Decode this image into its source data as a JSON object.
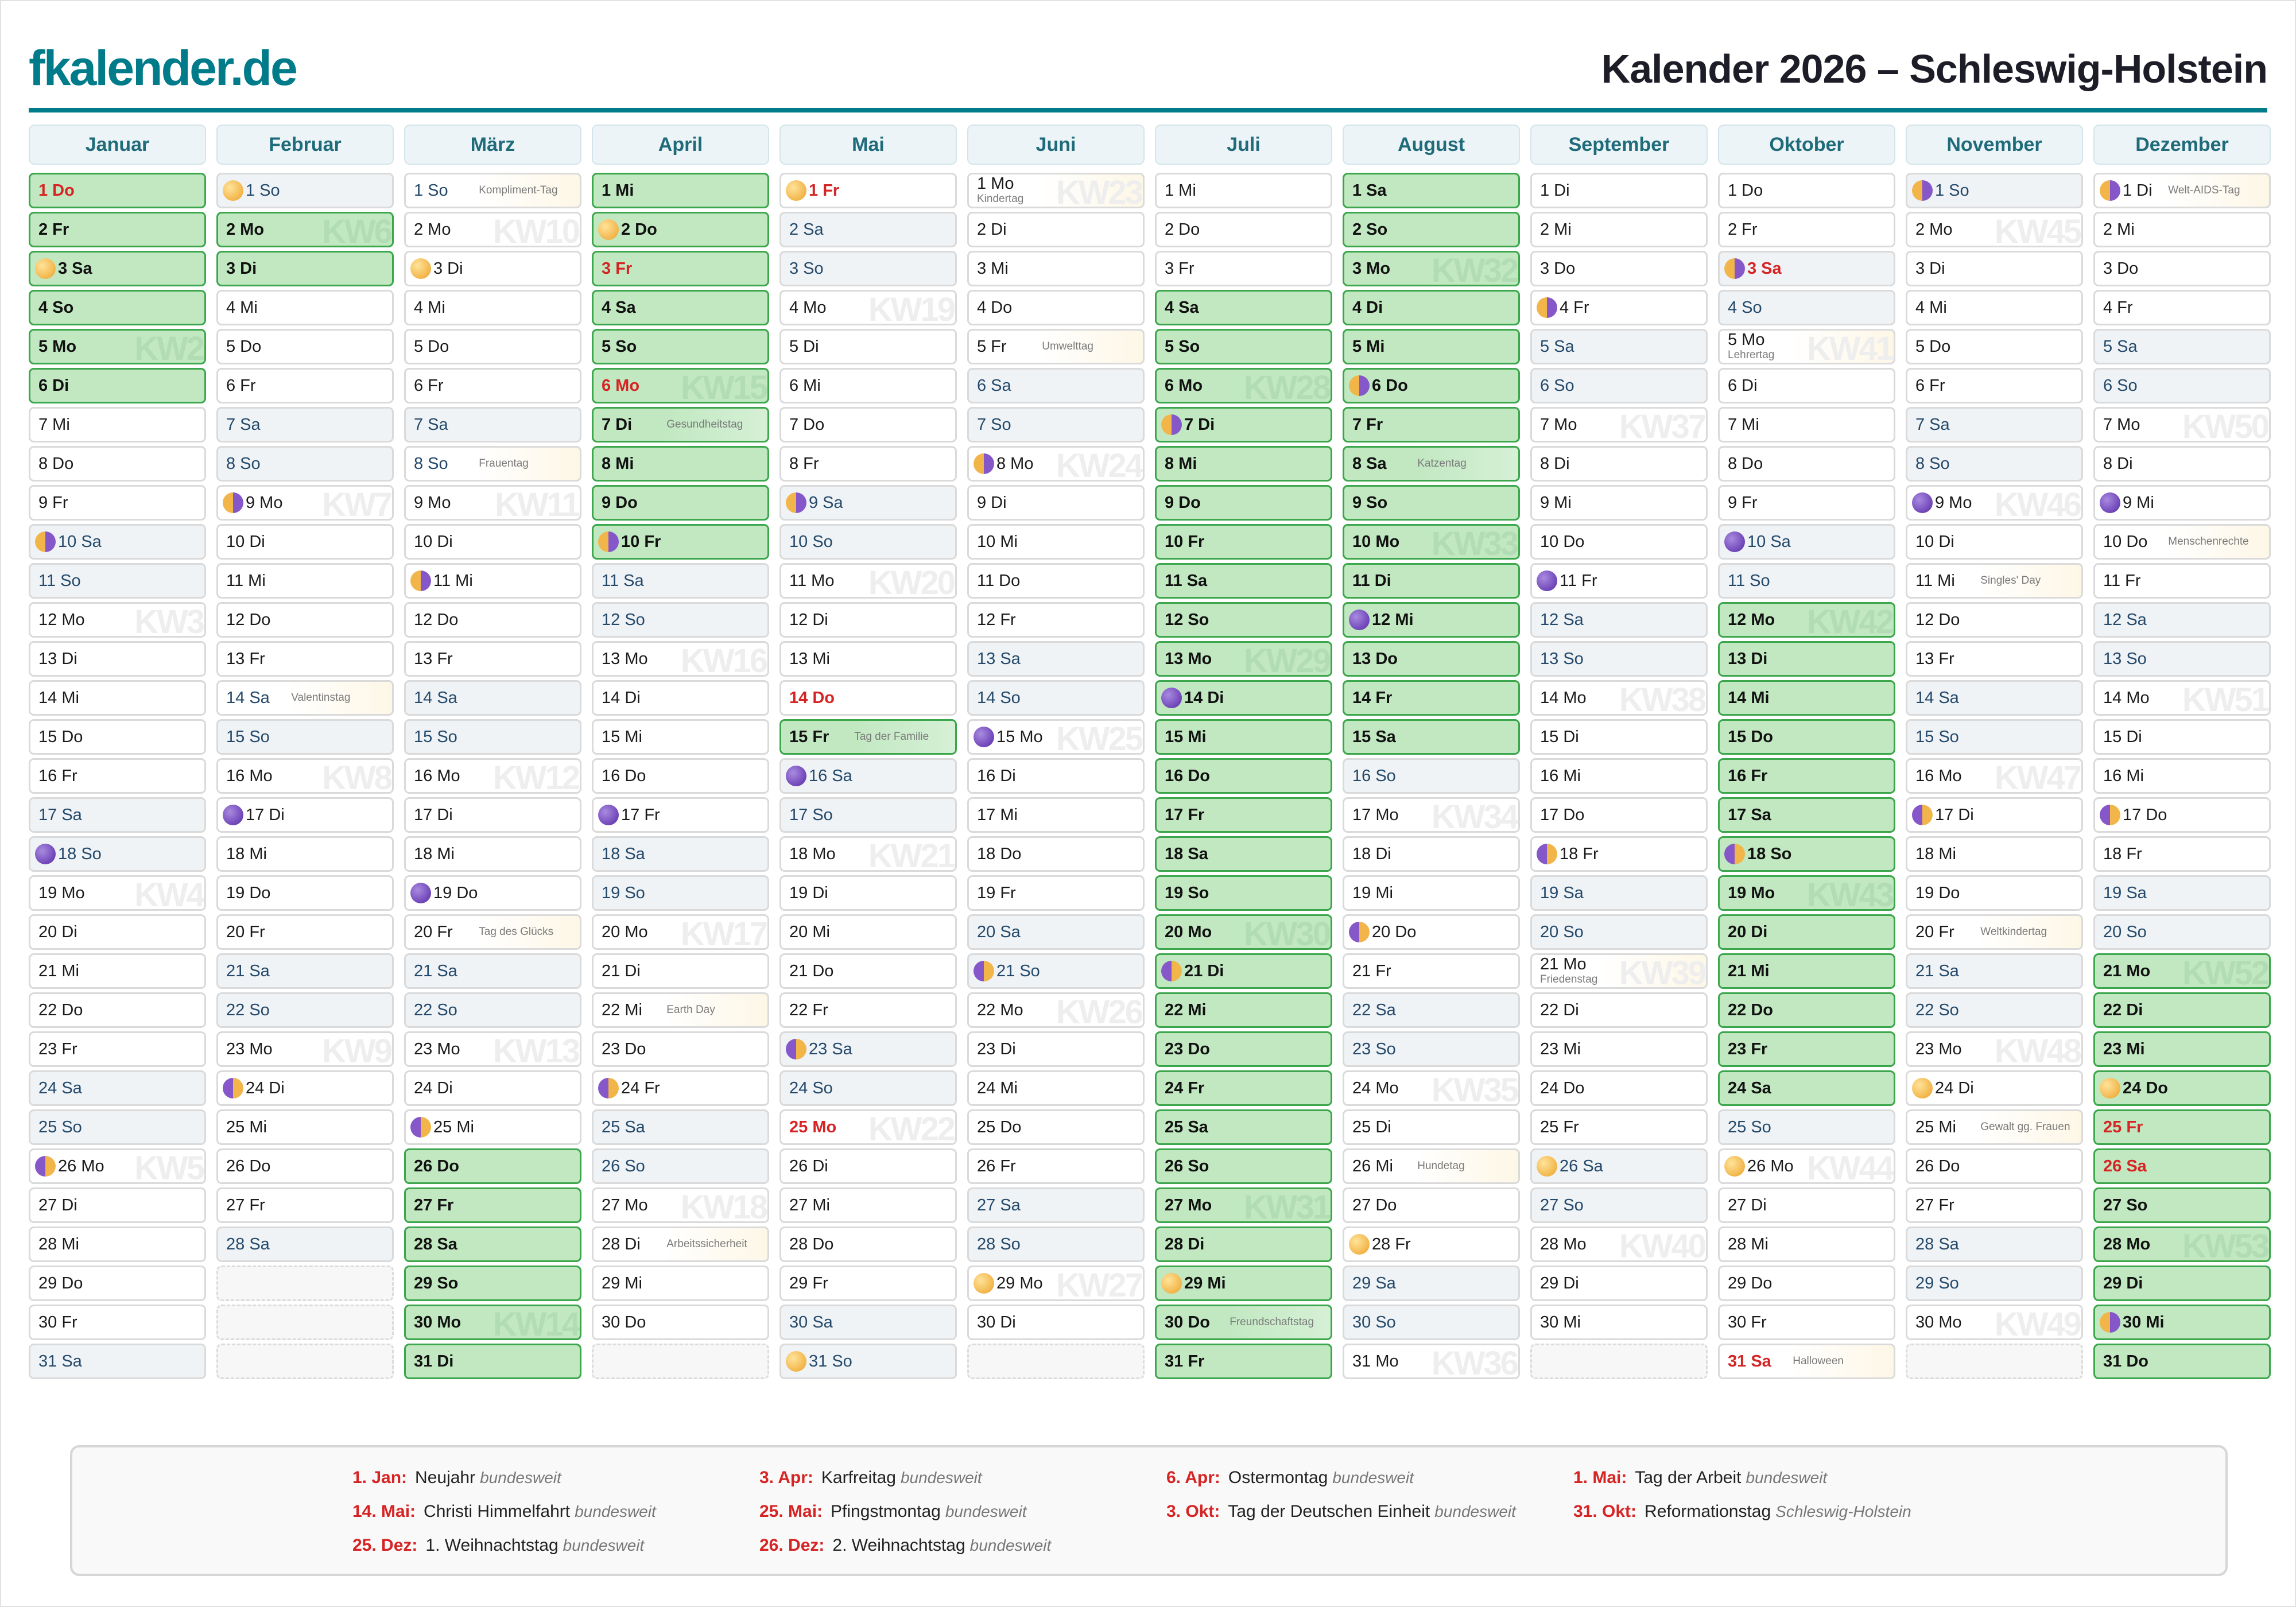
{
  "header": {
    "logo": "fkalender.de",
    "title": "Kalender 2026 – Schleswig-Holstein"
  },
  "months": [
    {
      "name": "Januar",
      "days": [
        "1 Do",
        "2 Fr",
        "3 Sa",
        "4 So",
        "5 Mo",
        "6 Di",
        "7 Mi",
        "8 Do",
        "9 Fr",
        "10 Sa",
        "11 So",
        "12 Mo",
        "13 Di",
        "14 Mi",
        "15 Do",
        "16 Fr",
        "17 Sa",
        "18 So",
        "19 Mo",
        "20 Di",
        "21 Mi",
        "22 Do",
        "23 Fr",
        "24 Sa",
        "25 So",
        "26 Mo",
        "27 Di",
        "28 Mi",
        "29 Do",
        "30 Fr",
        "31 Sa"
      ],
      "holidays": [
        1
      ],
      "ferien": [
        [
          1,
          6
        ]
      ],
      "moons": {
        "3": "full",
        "10": "lq",
        "18": "new",
        "26": "fq"
      },
      "notes": {},
      "kw": {
        "5": "KW2",
        "12": "KW3",
        "19": "KW4",
        "26": "KW5"
      }
    },
    {
      "name": "Februar",
      "days": [
        "1 So",
        "2 Mo",
        "3 Di",
        "4 Mi",
        "5 Do",
        "6 Fr",
        "7 Sa",
        "8 So",
        "9 Mo",
        "10 Di",
        "11 Mi",
        "12 Do",
        "13 Fr",
        "14 Sa",
        "15 So",
        "16 Mo",
        "17 Di",
        "18 Mi",
        "19 Do",
        "20 Fr",
        "21 Sa",
        "22 So",
        "23 Mo",
        "24 Di",
        "25 Mi",
        "26 Do",
        "27 Fr",
        "28 Sa"
      ],
      "holidays": [],
      "ferien": [
        [
          2,
          3
        ]
      ],
      "moons": {
        "1": "full",
        "9": "lq",
        "17": "new",
        "24": "fq"
      },
      "notes": {
        "14": "Valentinstag"
      },
      "kw": {
        "2": "KW6",
        "9": "KW7",
        "16": "KW8",
        "23": "KW9"
      }
    },
    {
      "name": "März",
      "days": [
        "1 So",
        "2 Mo",
        "3 Di",
        "4 Mi",
        "5 Do",
        "6 Fr",
        "7 Sa",
        "8 So",
        "9 Mo",
        "10 Di",
        "11 Mi",
        "12 Do",
        "13 Fr",
        "14 Sa",
        "15 So",
        "16 Mo",
        "17 Di",
        "18 Mi",
        "19 Do",
        "20 Fr",
        "21 Sa",
        "22 So",
        "23 Mo",
        "24 Di",
        "25 Mi",
        "26 Do",
        "27 Fr",
        "28 Sa",
        "29 So",
        "30 Mo",
        "31 Di"
      ],
      "holidays": [],
      "ferien": [
        [
          26,
          31
        ]
      ],
      "moons": {
        "3": "full",
        "11": "lq",
        "19": "new",
        "25": "fq"
      },
      "notes": {
        "1": "Kompliment-Tag",
        "8": "Frauentag",
        "20": "Tag des Glücks"
      },
      "kw": {
        "2": "KW10",
        "9": "KW11",
        "16": "KW12",
        "23": "KW13",
        "30": "KW14"
      }
    },
    {
      "name": "April",
      "days": [
        "1 Mi",
        "2 Do",
        "3 Fr",
        "4 Sa",
        "5 So",
        "6 Mo",
        "7 Di",
        "8 Mi",
        "9 Do",
        "10 Fr",
        "11 Sa",
        "12 So",
        "13 Mo",
        "14 Di",
        "15 Mi",
        "16 Do",
        "17 Fr",
        "18 Sa",
        "19 So",
        "20 Mo",
        "21 Di",
        "22 Mi",
        "23 Do",
        "24 Fr",
        "25 Sa",
        "26 So",
        "27 Mo",
        "28 Di",
        "29 Mi",
        "30 Do"
      ],
      "holidays": [
        3,
        6
      ],
      "ferien": [
        [
          1,
          10
        ]
      ],
      "moons": {
        "2": "full",
        "10": "lq",
        "17": "new",
        "24": "fq"
      },
      "notes": {
        "7": "Gesundheitstag",
        "22": "Earth Day",
        "28": "Arbeitssicherheit"
      },
      "kw": {
        "6": "KW15",
        "13": "KW16",
        "20": "KW17",
        "27": "KW18"
      }
    },
    {
      "name": "Mai",
      "days": [
        "1 Fr",
        "2 Sa",
        "3 So",
        "4 Mo",
        "5 Di",
        "6 Mi",
        "7 Do",
        "8 Fr",
        "9 Sa",
        "10 So",
        "11 Mo",
        "12 Di",
        "13 Mi",
        "14 Do",
        "15 Fr",
        "16 Sa",
        "17 So",
        "18 Mo",
        "19 Di",
        "20 Mi",
        "21 Do",
        "22 Fr",
        "23 Sa",
        "24 So",
        "25 Mo",
        "26 Di",
        "27 Mi",
        "28 Do",
        "29 Fr",
        "30 Sa",
        "31 So"
      ],
      "holidays": [
        1,
        14,
        25
      ],
      "ferien": [
        [
          15,
          15
        ]
      ],
      "moons": {
        "1": "full",
        "9": "lq",
        "16": "new",
        "23": "fq",
        "31": "full"
      },
      "notes": {
        "15": "Tag der Familie"
      },
      "kw": {
        "4": "KW19",
        "11": "KW20",
        "18": "KW21",
        "25": "KW22"
      }
    },
    {
      "name": "Juni",
      "days": [
        "1 Mo",
        "2 Di",
        "3 Mi",
        "4 Do",
        "5 Fr",
        "6 Sa",
        "7 So",
        "8 Mo",
        "9 Di",
        "10 Mi",
        "11 Do",
        "12 Fr",
        "13 Sa",
        "14 So",
        "15 Mo",
        "16 Di",
        "17 Mi",
        "18 Do",
        "19 Fr",
        "20 Sa",
        "21 So",
        "22 Mo",
        "23 Di",
        "24 Mi",
        "25 Do",
        "26 Fr",
        "27 Sa",
        "28 So",
        "29 Mo",
        "30 Di"
      ],
      "holidays": [],
      "ferien": [],
      "moons": {
        "8": "lq",
        "15": "new",
        "21": "fq",
        "29": "full"
      },
      "notes": {
        "1": "Kindertag",
        "5": "Umwelttag"
      },
      "kw": {
        "1": "KW23",
        "8": "KW24",
        "15": "KW25",
        "22": "KW26",
        "29": "KW27"
      }
    },
    {
      "name": "Juli",
      "days": [
        "1 Mi",
        "2 Do",
        "3 Fr",
        "4 Sa",
        "5 So",
        "6 Mo",
        "7 Di",
        "8 Mi",
        "9 Do",
        "10 Fr",
        "11 Sa",
        "12 So",
        "13 Mo",
        "14 Di",
        "15 Mi",
        "16 Do",
        "17 Fr",
        "18 Sa",
        "19 So",
        "20 Mo",
        "21 Di",
        "22 Mi",
        "23 Do",
        "24 Fr",
        "25 Sa",
        "26 So",
        "27 Mo",
        "28 Di",
        "29 Mi",
        "30 Do",
        "31 Fr"
      ],
      "holidays": [],
      "ferien": [
        [
          4,
          31
        ]
      ],
      "moons": {
        "7": "lq",
        "14": "new",
        "21": "fq",
        "29": "full"
      },
      "notes": {
        "30": "Freundschaftstag"
      },
      "kw": {
        "6": "KW28",
        "13": "KW29",
        "20": "KW30",
        "27": "KW31"
      }
    },
    {
      "name": "August",
      "days": [
        "1 Sa",
        "2 So",
        "3 Mo",
        "4 Di",
        "5 Mi",
        "6 Do",
        "7 Fr",
        "8 Sa",
        "9 So",
        "10 Mo",
        "11 Di",
        "12 Mi",
        "13 Do",
        "14 Fr",
        "15 Sa",
        "16 So",
        "17 Mo",
        "18 Di",
        "19 Mi",
        "20 Do",
        "21 Fr",
        "22 Sa",
        "23 So",
        "24 Mo",
        "25 Di",
        "26 Mi",
        "27 Do",
        "28 Fr",
        "29 Sa",
        "30 So",
        "31 Mo"
      ],
      "holidays": [],
      "ferien": [
        [
          1,
          15
        ]
      ],
      "moons": {
        "6": "lq",
        "12": "new",
        "20": "fq",
        "28": "full"
      },
      "notes": {
        "8": "Katzentag",
        "26": "Hundetag"
      },
      "kw": {
        "3": "KW32",
        "10": "KW33",
        "17": "KW34",
        "24": "KW35",
        "31": "KW36"
      }
    },
    {
      "name": "September",
      "days": [
        "1 Di",
        "2 Mi",
        "3 Do",
        "4 Fr",
        "5 Sa",
        "6 So",
        "7 Mo",
        "8 Di",
        "9 Mi",
        "10 Do",
        "11 Fr",
        "12 Sa",
        "13 So",
        "14 Mo",
        "15 Di",
        "16 Mi",
        "17 Do",
        "18 Fr",
        "19 Sa",
        "20 So",
        "21 Mo",
        "22 Di",
        "23 Mi",
        "24 Do",
        "25 Fr",
        "26 Sa",
        "27 So",
        "28 Mo",
        "29 Di",
        "30 Mi"
      ],
      "holidays": [],
      "ferien": [],
      "moons": {
        "4": "lq",
        "11": "new",
        "18": "fq",
        "26": "full"
      },
      "notes": {
        "21": "Friedenstag"
      },
      "kw": {
        "7": "KW37",
        "14": "KW38",
        "21": "KW39",
        "28": "KW40"
      }
    },
    {
      "name": "Oktober",
      "days": [
        "1 Do",
        "2 Fr",
        "3 Sa",
        "4 So",
        "5 Mo",
        "6 Di",
        "7 Mi",
        "8 Do",
        "9 Fr",
        "10 Sa",
        "11 So",
        "12 Mo",
        "13 Di",
        "14 Mi",
        "15 Do",
        "16 Fr",
        "17 Sa",
        "18 So",
        "19 Mo",
        "20 Di",
        "21 Mi",
        "22 Do",
        "23 Fr",
        "24 Sa",
        "25 So",
        "26 Mo",
        "27 Di",
        "28 Mi",
        "29 Do",
        "30 Fr",
        "31 Sa"
      ],
      "holidays": [
        3,
        31
      ],
      "ferien": [
        [
          12,
          24
        ]
      ],
      "moons": {
        "3": "lq",
        "10": "new",
        "18": "fq",
        "26": "full"
      },
      "notes": {
        "5": "Lehrertag",
        "31": "Halloween"
      },
      "kw": {
        "5": "KW41",
        "12": "KW42",
        "19": "KW43",
        "26": "KW44"
      }
    },
    {
      "name": "November",
      "days": [
        "1 So",
        "2 Mo",
        "3 Di",
        "4 Mi",
        "5 Do",
        "6 Fr",
        "7 Sa",
        "8 So",
        "9 Mo",
        "10 Di",
        "11 Mi",
        "12 Do",
        "13 Fr",
        "14 Sa",
        "15 So",
        "16 Mo",
        "17 Di",
        "18 Mi",
        "19 Do",
        "20 Fr",
        "21 Sa",
        "22 So",
        "23 Mo",
        "24 Di",
        "25 Mi",
        "26 Do",
        "27 Fr",
        "28 Sa",
        "29 So",
        "30 Mo"
      ],
      "holidays": [],
      "ferien": [],
      "moons": {
        "1": "lq",
        "9": "new",
        "17": "fq",
        "24": "full"
      },
      "notes": {
        "11": "Singles' Day",
        "20": "Weltkindertag",
        "25": "Gewalt gg. Frauen"
      },
      "kw": {
        "2": "KW45",
        "9": "KW46",
        "16": "KW47",
        "23": "KW48",
        "30": "KW49"
      }
    },
    {
      "name": "Dezember",
      "days": [
        "1 Di",
        "2 Mi",
        "3 Do",
        "4 Fr",
        "5 Sa",
        "6 So",
        "7 Mo",
        "8 Di",
        "9 Mi",
        "10 Do",
        "11 Fr",
        "12 Sa",
        "13 So",
        "14 Mo",
        "15 Di",
        "16 Mi",
        "17 Do",
        "18 Fr",
        "19 Sa",
        "20 So",
        "21 Mo",
        "22 Di",
        "23 Mi",
        "24 Do",
        "25 Fr",
        "26 Sa",
        "27 So",
        "28 Mo",
        "29 Di",
        "30 Mi",
        "31 Do"
      ],
      "holidays": [
        25,
        26
      ],
      "ferien": [
        [
          21,
          31
        ]
      ],
      "moons": {
        "1": "lq",
        "9": "new",
        "17": "fq",
        "24": "full",
        "30": "lq"
      },
      "notes": {
        "1": "Welt-AIDS-Tag",
        "10": "Menschenrechte"
      },
      "kw": {
        "7": "KW50",
        "14": "KW51",
        "21": "KW52",
        "28": "KW53"
      }
    }
  ],
  "legend": [
    {
      "date": "1. Jan:",
      "name": "Neujahr",
      "scope": "bundesweit"
    },
    {
      "date": "3. Apr:",
      "name": "Karfreitag",
      "scope": "bundesweit"
    },
    {
      "date": "6. Apr:",
      "name": "Ostermontag",
      "scope": "bundesweit"
    },
    {
      "date": "1. Mai:",
      "name": "Tag der Arbeit",
      "scope": "bundesweit"
    },
    {
      "date": "14. Mai:",
      "name": "Christi Himmelfahrt",
      "scope": "bundesweit"
    },
    {
      "date": "25. Mai:",
      "name": "Pfingstmontag",
      "scope": "bundesweit"
    },
    {
      "date": "3. Okt:",
      "name": "Tag der Deutschen Einheit",
      "scope": "bundesweit"
    },
    {
      "date": "31. Okt:",
      "name": "Reformationstag",
      "scope": "Schleswig-Holstein"
    },
    {
      "date": "25. Dez:",
      "name": "1. Weihnachtstag",
      "scope": "bundesweit"
    },
    {
      "date": "26. Dez:",
      "name": "2. Weihnachtstag",
      "scope": "bundesweit"
    }
  ],
  "colors": {
    "brand": "#007b8a",
    "holiday": "#d62424",
    "ferien": "#c1e8c1",
    "weekend": "#eff3f6"
  }
}
